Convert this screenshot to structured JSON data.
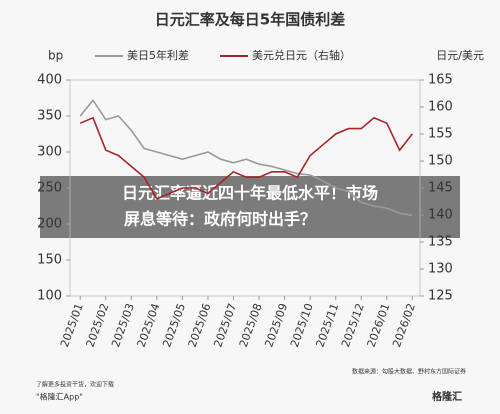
{
  "chart_data": {
    "type": "line",
    "title": "日元汇率及每日5年国债利差",
    "y_label": "bp",
    "y2_label": "日元/美元",
    "x": [
      0,
      0.5,
      1,
      1.5,
      2,
      2.5,
      3,
      3.5,
      4,
      4.5,
      5,
      5.5,
      6,
      6.5,
      7,
      7.5,
      8,
      8.5,
      9,
      9.5,
      10,
      10.5,
      11,
      11.5,
      12,
      12.5,
      13
    ],
    "xlim": [
      -0.4,
      13.3
    ],
    "xticks": [
      {
        "value": 0,
        "label": "2025/01"
      },
      {
        "value": 1,
        "label": "2025/02"
      },
      {
        "value": 2,
        "label": "2025/03"
      },
      {
        "value": 3,
        "label": "2025/04"
      },
      {
        "value": 4,
        "label": "2025/05"
      },
      {
        "value": 5,
        "label": "2025/06"
      },
      {
        "value": 6,
        "label": "2025/07"
      },
      {
        "value": 7,
        "label": "2025/08"
      },
      {
        "value": 8,
        "label": "2025/09"
      },
      {
        "value": 9,
        "label": "2025/10"
      },
      {
        "value": 10,
        "label": "2025/11"
      },
      {
        "value": 11,
        "label": "2025/12"
      },
      {
        "value": 12,
        "label": "2026/01"
      },
      {
        "value": 13,
        "label": "2026/02"
      }
    ],
    "ylim": [
      100,
      400
    ],
    "yticks": [
      100,
      150,
      200,
      250,
      300,
      350,
      400
    ],
    "y2lim": [
      125,
      165
    ],
    "y2ticks": [
      125,
      130,
      135,
      140,
      145,
      150,
      155,
      160,
      165
    ],
    "series": [
      {
        "name": "美日5年利差",
        "color": "#9a9a9a",
        "values": [
          350,
          372,
          345,
          350,
          330,
          305,
          300,
          295,
          290,
          295,
          300,
          290,
          285,
          290,
          283,
          280,
          275,
          270,
          268,
          260,
          250,
          245,
          230,
          225,
          222,
          215,
          212
        ]
      },
      {
        "name": "美元兑日元（右轴）",
        "color": "#a8242a",
        "axis": "y2",
        "values": [
          157,
          158,
          152,
          151,
          149,
          147,
          143,
          144,
          145,
          145,
          144,
          146,
          148,
          147,
          147,
          148,
          148,
          147,
          151,
          153,
          155,
          156,
          156,
          158,
          157,
          152,
          155
        ]
      }
    ],
    "source": "数据来源：勾股大数据、野村东方国际证券"
  },
  "overlay": {
    "line1": "日元汇率逼近四十年最低水平！市场",
    "line2": "屏息等待：政府何时出手？"
  },
  "footer": {
    "note": "了解更多投资干货，欢迎下载",
    "app": "\"格隆汇App\"",
    "brand": "格隆汇"
  }
}
